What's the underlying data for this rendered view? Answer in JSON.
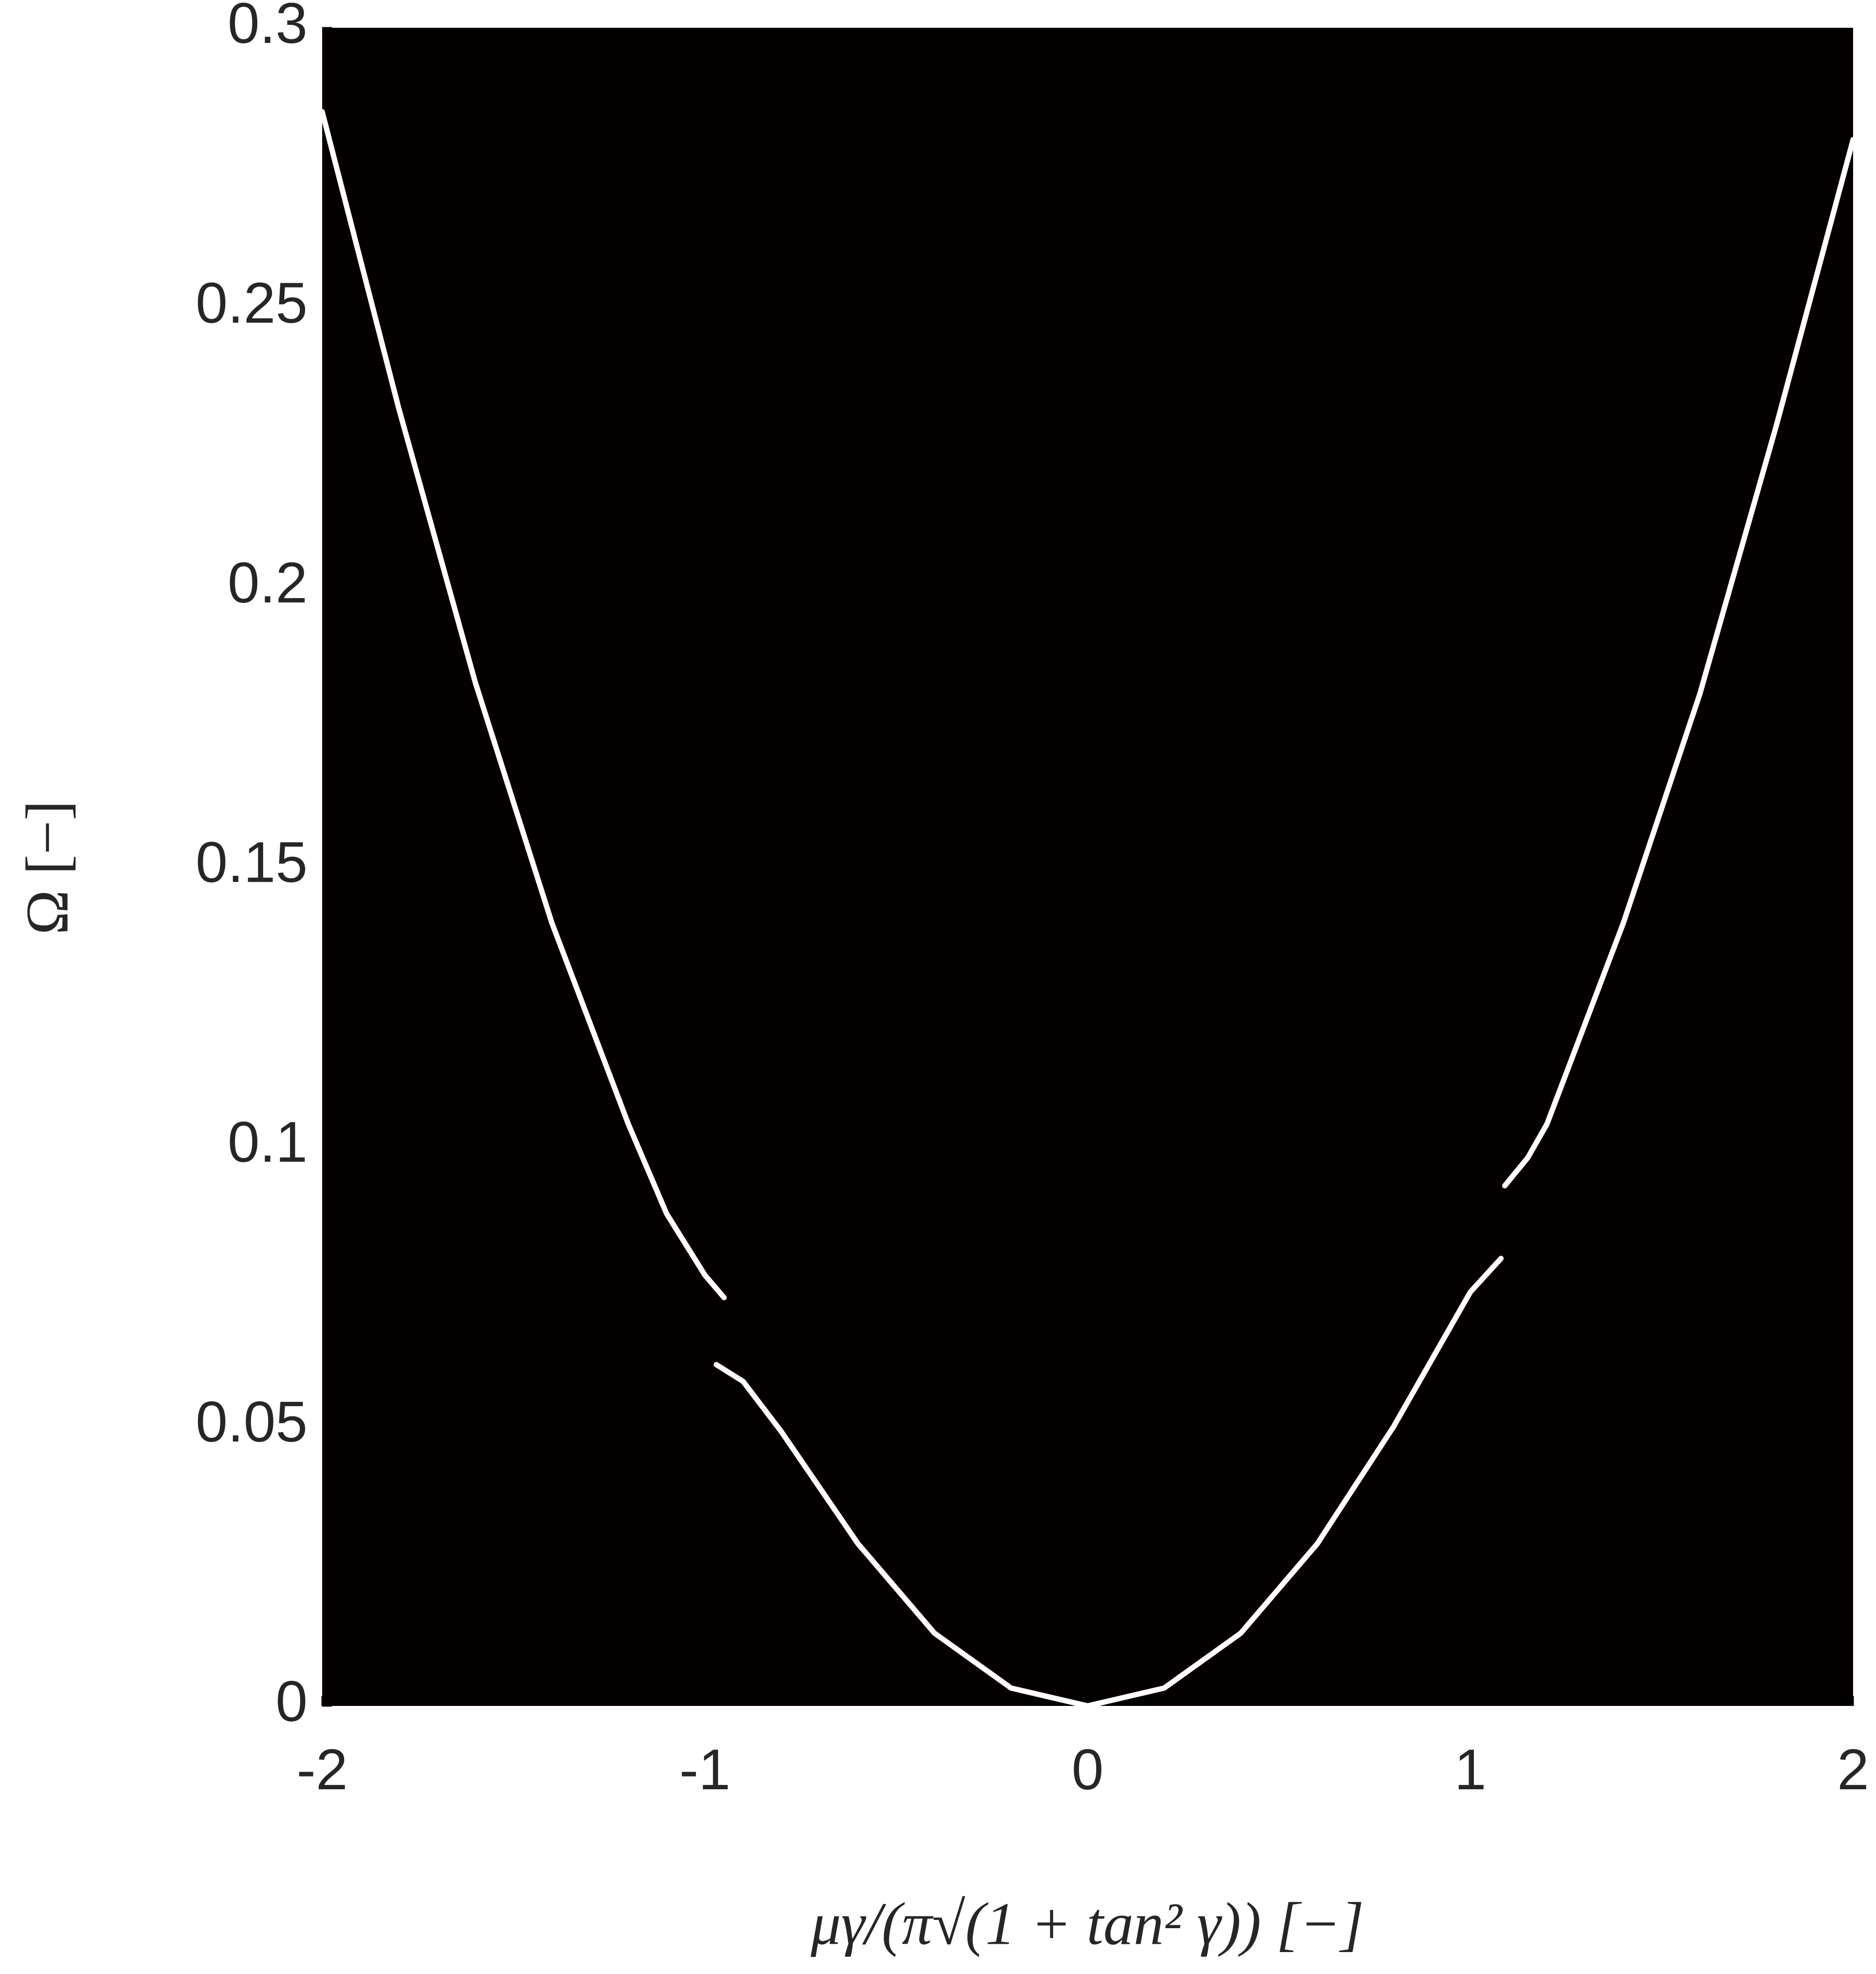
{
  "chart_data": {
    "type": "line",
    "xlabel": "μγ/(π√(1 + tan² γ)) [−]",
    "ylabel": "Ω [−]",
    "x": [
      -2,
      -1.8,
      -1.6,
      -1.4,
      -1.2,
      -1.1,
      -1.0,
      -0.95,
      -0.96,
      -0.97,
      -0.9,
      -0.8,
      -0.6,
      -0.4,
      -0.2,
      0,
      0.2,
      0.4,
      0.6,
      0.8,
      0.9,
      1.0,
      1.08,
      1.085,
      1.09,
      1.15,
      1.2,
      1.4,
      1.6,
      1.8,
      2
    ],
    "values": [
      0.285,
      0.232,
      0.183,
      0.14,
      0.104,
      0.088,
      0.077,
      0.073,
      null,
      0.061,
      0.058,
      0.049,
      0.029,
      0.013,
      0.0032,
      0,
      0.0032,
      0.013,
      0.029,
      0.05,
      0.062,
      0.074,
      0.08,
      null,
      0.093,
      0.098,
      0.104,
      0.14,
      0.181,
      0.229,
      0.28
    ],
    "color": "#ffffff",
    "background": "#050000",
    "xlim": [
      -2,
      2
    ],
    "xticks": [
      -2,
      -1,
      0,
      1,
      2
    ],
    "ylim": [
      0,
      0.3
    ],
    "yticks": [
      0,
      0.05,
      0.1,
      0.15,
      0.2,
      0.25,
      0.3
    ]
  }
}
